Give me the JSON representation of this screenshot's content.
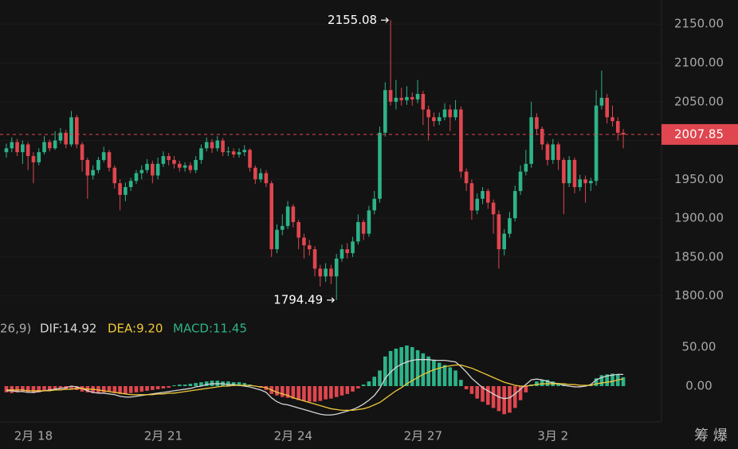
{
  "chart_data": [
    {
      "type": "candlestick",
      "categories": [
        null,
        null,
        null,
        null,
        null,
        "2月 18",
        null,
        null,
        null,
        null,
        null,
        null,
        null,
        null,
        null,
        null,
        null,
        null,
        null,
        null,
        null,
        null,
        null,
        null,
        null,
        null,
        null,
        null,
        null,
        "2月 21",
        null,
        null,
        null,
        null,
        null,
        null,
        null,
        null,
        null,
        null,
        null,
        null,
        null,
        null,
        null,
        null,
        null,
        null,
        null,
        null,
        null,
        null,
        null,
        "2月 24",
        null,
        null,
        null,
        null,
        null,
        null,
        null,
        null,
        null,
        null,
        null,
        null,
        null,
        null,
        null,
        null,
        null,
        null,
        null,
        null,
        null,
        null,
        null,
        "2月 27",
        null,
        null,
        null,
        null,
        null,
        null,
        null,
        null,
        null,
        null,
        null,
        null,
        null,
        null,
        null,
        null,
        null,
        null,
        null,
        null,
        null,
        null,
        null,
        "3月 2",
        null,
        null,
        null,
        null,
        null,
        null,
        null,
        null,
        null,
        null,
        null,
        null,
        null
      ],
      "open": [
        1985,
        1990,
        1998,
        1985,
        1995,
        1980,
        1972,
        1985,
        1998,
        1990,
        2000,
        2010,
        1995,
        2030,
        1995,
        1975,
        1955,
        1962,
        1975,
        1985,
        1965,
        1945,
        1930,
        1940,
        1948,
        1958,
        1962,
        1970,
        1955,
        1970,
        1980,
        1975,
        1970,
        1965,
        1968,
        1962,
        1975,
        1990,
        1998,
        1990,
        2000,
        1985,
        1986,
        1982,
        1985,
        1988,
        1965,
        1950,
        1958,
        1945,
        1860,
        1885,
        1890,
        1915,
        1895,
        1875,
        1865,
        1860,
        1835,
        1825,
        1835,
        1825,
        1848,
        1860,
        1855,
        1870,
        1895,
        1880,
        1910,
        1925,
        2010,
        2065,
        2050,
        2055,
        2052,
        2056,
        2053,
        2060,
        2040,
        2030,
        2025,
        2030,
        2040,
        2030,
        2040,
        1960,
        1945,
        1910,
        1925,
        1935,
        1920,
        1905,
        1860,
        1880,
        1900,
        1935,
        1960,
        1970,
        2030,
        2015,
        1995,
        1975,
        1995,
        1975,
        1945,
        1975,
        1940,
        1950,
        1945,
        1948,
        2045,
        2055,
        2030,
        2025,
        2010
      ],
      "high": [
        1996,
        2004,
        2002,
        2000,
        1998,
        1985,
        1990,
        2006,
        2001,
        2012,
        2016,
        2014,
        2038,
        2033,
        1998,
        1978,
        1968,
        1979,
        1992,
        1988,
        1968,
        1950,
        1946,
        1952,
        1962,
        1968,
        1976,
        1974,
        1978,
        1986,
        1984,
        1980,
        1974,
        1972,
        1972,
        1980,
        1995,
        2004,
        2002,
        2006,
        2003,
        1992,
        1990,
        1990,
        1994,
        1990,
        1968,
        1964,
        1962,
        1948,
        1892,
        1905,
        1922,
        1918,
        1898,
        1880,
        1872,
        1864,
        1840,
        1842,
        1840,
        1854,
        1866,
        1868,
        1876,
        1905,
        1898,
        1916,
        1935,
        2018,
        2075,
        2155.08,
        2078,
        2068,
        2070,
        2062,
        2078,
        2064,
        2045,
        2036,
        2036,
        2048,
        2046,
        2052,
        2044,
        1964,
        1950,
        1932,
        1940,
        1938,
        1924,
        1910,
        1886,
        1908,
        1942,
        1968,
        1988,
        2050,
        2035,
        2018,
        1998,
        2002,
        1998,
        1978,
        1980,
        1978,
        1956,
        1955,
        1952,
        2065,
        2090,
        2060,
        2045,
        2030,
        2015
      ],
      "low": [
        1978,
        1985,
        1980,
        1970,
        1962,
        1945,
        1968,
        1982,
        1986,
        1988,
        1996,
        1990,
        1992,
        1990,
        1960,
        1925,
        1950,
        1958,
        1972,
        1960,
        1938,
        1910,
        1922,
        1935,
        1944,
        1950,
        1958,
        1945,
        1950,
        1966,
        1968,
        1964,
        1960,
        1960,
        1958,
        1958,
        1970,
        1986,
        1984,
        1986,
        1980,
        1980,
        1978,
        1978,
        1980,
        1960,
        1944,
        1946,
        1940,
        1850,
        1855,
        1878,
        1886,
        1888,
        1860,
        1848,
        1852,
        1825,
        1812,
        1818,
        1815,
        1794.49,
        1844,
        1848,
        1850,
        1866,
        1872,
        1876,
        1905,
        1920,
        2005,
        2045,
        2040,
        2045,
        2046,
        2045,
        2048,
        2020,
        2000,
        2018,
        2020,
        2026,
        2012,
        2026,
        1952,
        1935,
        1898,
        1905,
        1918,
        1912,
        1880,
        1835,
        1852,
        1875,
        1896,
        1930,
        1955,
        1965,
        2008,
        1988,
        1968,
        1970,
        1962,
        1905,
        1940,
        1932,
        1935,
        1920,
        1935,
        1942,
        2040,
        2022,
        2018,
        2000,
        1990
      ],
      "close": [
        1990,
        1998,
        1985,
        1995,
        1980,
        1972,
        1985,
        1998,
        1990,
        2000,
        2010,
        1995,
        2030,
        1995,
        1975,
        1955,
        1962,
        1975,
        1985,
        1965,
        1945,
        1930,
        1940,
        1948,
        1958,
        1962,
        1970,
        1955,
        1970,
        1980,
        1975,
        1970,
        1965,
        1968,
        1962,
        1975,
        1990,
        1998,
        1990,
        2000,
        1985,
        1986,
        1982,
        1985,
        1988,
        1965,
        1950,
        1958,
        1945,
        1860,
        1885,
        1890,
        1915,
        1895,
        1875,
        1865,
        1860,
        1835,
        1825,
        1835,
        1825,
        1848,
        1860,
        1855,
        1870,
        1895,
        1880,
        1910,
        1925,
        2010,
        2065,
        2050,
        2055,
        2052,
        2056,
        2053,
        2060,
        2040,
        2030,
        2025,
        2030,
        2040,
        2030,
        2040,
        1960,
        1945,
        1910,
        1925,
        1935,
        1920,
        1905,
        1860,
        1880,
        1900,
        1935,
        1960,
        1970,
        2030,
        2015,
        1995,
        1975,
        1995,
        1975,
        1945,
        1975,
        1940,
        1950,
        1945,
        1948,
        2045,
        2055,
        2030,
        2025,
        2010,
        2007.85
      ],
      "up_color": "#2db389",
      "down_color": "#e0464f",
      "ylim": [
        1776,
        2181
      ],
      "yticks": [
        {
          "value": 1800,
          "label": "1800.00"
        },
        {
          "value": 1850,
          "label": "1850.00"
        },
        {
          "value": 1900,
          "label": "1900.00"
        },
        {
          "value": 1950,
          "label": "1950.00"
        },
        {
          "value": 2000,
          "label": "2000.00"
        },
        {
          "value": 2050,
          "label": "2050.00"
        },
        {
          "value": 2100,
          "label": "2100.00"
        },
        {
          "value": 2150,
          "label": "2150.00"
        }
      ],
      "grid": true,
      "corner_label": "筹 爆"
    },
    {
      "type": "macd",
      "label": "26,9)",
      "series": [
        {
          "name": "DIF:14.92",
          "color": "#d6d6d6",
          "values": [
            -6,
            -6,
            -7,
            -7,
            -8,
            -8,
            -7,
            -6,
            -5,
            -4,
            -3,
            -2,
            0,
            -1,
            -3,
            -6,
            -8,
            -9,
            -9,
            -10,
            -11,
            -13,
            -14,
            -14,
            -13,
            -12,
            -11,
            -10,
            -9,
            -8,
            -7,
            -6,
            -5,
            -4,
            -3,
            -1,
            0,
            2,
            3,
            3,
            3,
            2,
            2,
            1,
            0,
            -1,
            -3,
            -5,
            -8,
            -15,
            -20,
            -23,
            -24,
            -26,
            -28,
            -30,
            -32,
            -34,
            -36,
            -37,
            -37,
            -36,
            -34,
            -32,
            -30,
            -27,
            -23,
            -18,
            -12,
            -3,
            10,
            18,
            24,
            28,
            31,
            33,
            34,
            34,
            34,
            33,
            33,
            33,
            32,
            31,
            25,
            18,
            10,
            4,
            -2,
            -6,
            -10,
            -14,
            -16,
            -15,
            -10,
            -4,
            2,
            8,
            9,
            8,
            6,
            4,
            3,
            1,
            0,
            -1,
            -1,
            0,
            2,
            8,
            11,
            13,
            14,
            15,
            14.92
          ]
        },
        {
          "name": "DEA:9.20",
          "color": "#f0c93a",
          "values": [
            -5,
            -5,
            -5,
            -5,
            -6,
            -6,
            -6,
            -6,
            -6,
            -5,
            -5,
            -4,
            -4,
            -3,
            -3,
            -4,
            -4,
            -5,
            -6,
            -7,
            -8,
            -9,
            -10,
            -11,
            -11,
            -11,
            -11,
            -11,
            -10,
            -10,
            -9,
            -9,
            -8,
            -7,
            -6,
            -5,
            -4,
            -3,
            -2,
            -1,
            0,
            0,
            1,
            1,
            1,
            1,
            0,
            -1,
            -2,
            -5,
            -8,
            -10,
            -12,
            -15,
            -17,
            -19,
            -21,
            -23,
            -25,
            -27,
            -29,
            -30,
            -31,
            -31,
            -31,
            -30,
            -29,
            -27,
            -24,
            -21,
            -16,
            -11,
            -6,
            -2,
            3,
            7,
            11,
            15,
            18,
            21,
            23,
            25,
            26,
            27,
            27,
            25,
            23,
            20,
            17,
            14,
            11,
            8,
            5,
            3,
            1,
            0,
            0,
            1,
            2,
            3,
            3,
            3,
            3,
            3,
            2,
            2,
            1,
            1,
            1,
            3,
            4,
            5,
            6,
            8,
            9.2
          ]
        }
      ],
      "histogram": {
        "name": "MACD:11.45",
        "color": "#2db389",
        "values": [
          -8,
          -9,
          -8,
          -7,
          -8,
          -9,
          -8,
          -6,
          -5,
          -4,
          -3,
          -4,
          -3,
          -5,
          -7,
          -8,
          -9,
          -9,
          -8,
          -7,
          -9,
          -10,
          -10,
          -9,
          -8,
          -7,
          -6,
          -5,
          -4,
          -3,
          -2,
          1,
          2,
          2,
          3,
          4,
          5,
          6,
          7,
          7,
          6,
          6,
          5,
          5,
          4,
          2,
          0,
          -2,
          -5,
          -10,
          -12,
          -14,
          -15,
          -16,
          -18,
          -19,
          -20,
          -20,
          -19,
          -17,
          -16,
          -14,
          -12,
          -10,
          -7,
          -3,
          2,
          6,
          12,
          20,
          38,
          45,
          48,
          50,
          52,
          50,
          46,
          42,
          38,
          34,
          30,
          27,
          24,
          20,
          8,
          -4,
          -10,
          -16,
          -20,
          -24,
          -28,
          -32,
          -36,
          -34,
          -28,
          -18,
          -8,
          2,
          6,
          8,
          8,
          6,
          4,
          2,
          0,
          -1,
          -1,
          0,
          2,
          10,
          14,
          15,
          16,
          15,
          11.45
        ]
      },
      "up_color": "#2db389",
      "down_color": "#e0464f",
      "ylim": [
        -45.9,
        86.7
      ],
      "yticks": [
        {
          "value": 0,
          "label": "0.00"
        },
        {
          "value": 50,
          "label": "50.00"
        }
      ]
    }
  ]
}
